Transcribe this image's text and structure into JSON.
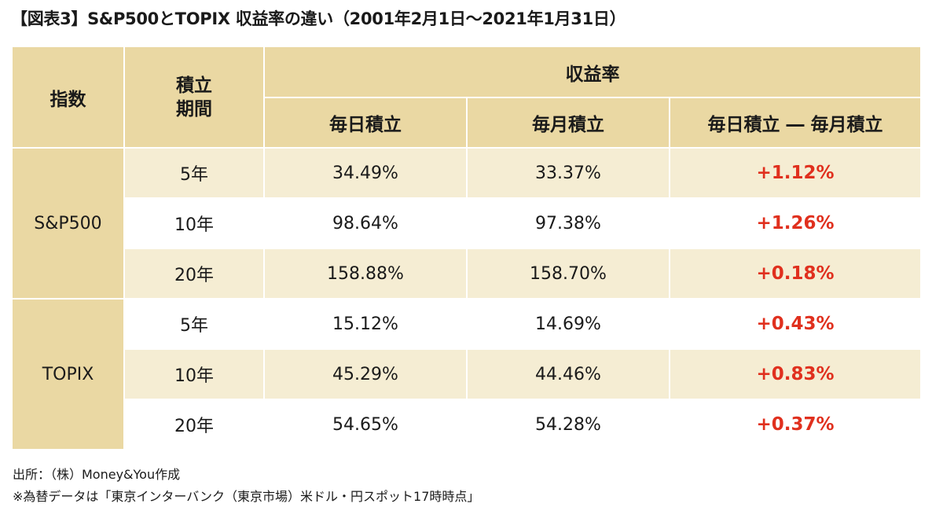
{
  "title": "【図表3】S&P500とTOPIX 収益率の違い（2001年2月1日〜2021年1月31日）",
  "headers": {
    "index": "指数",
    "period_line1": "積立",
    "period_line2": "期間",
    "return_group": "収益率",
    "daily": "毎日積立",
    "monthly": "毎月積立",
    "diff": "毎日積立 ― 毎月積立"
  },
  "groups": [
    {
      "index": "S&P500",
      "rows": [
        {
          "period": "5年",
          "daily": "34.49%",
          "monthly": "33.37%",
          "diff": "+1.12%"
        },
        {
          "period": "10年",
          "daily": "98.64%",
          "monthly": "97.38%",
          "diff": "+1.26%"
        },
        {
          "period": "20年",
          "daily": "158.88%",
          "monthly": "158.70%",
          "diff": "+0.18%"
        }
      ]
    },
    {
      "index": "TOPIX",
      "rows": [
        {
          "period": "5年",
          "daily": "15.12%",
          "monthly": "14.69%",
          "diff": "+0.43%"
        },
        {
          "period": "10年",
          "daily": "45.29%",
          "monthly": "44.46%",
          "diff": "+0.83%"
        },
        {
          "period": "20年",
          "daily": "54.65%",
          "monthly": "54.28%",
          "diff": "+0.37%"
        }
      ]
    }
  ],
  "footnotes": {
    "source": "出所：（株）Money&You作成",
    "note": "※為替データは「東京インターバンク（東京市場）米ドル・円スポット17時時点」"
  },
  "colors": {
    "header_bg": "#ead8a3",
    "alt_row_bg": "#f5edd3",
    "diff_text": "#e0301e"
  }
}
